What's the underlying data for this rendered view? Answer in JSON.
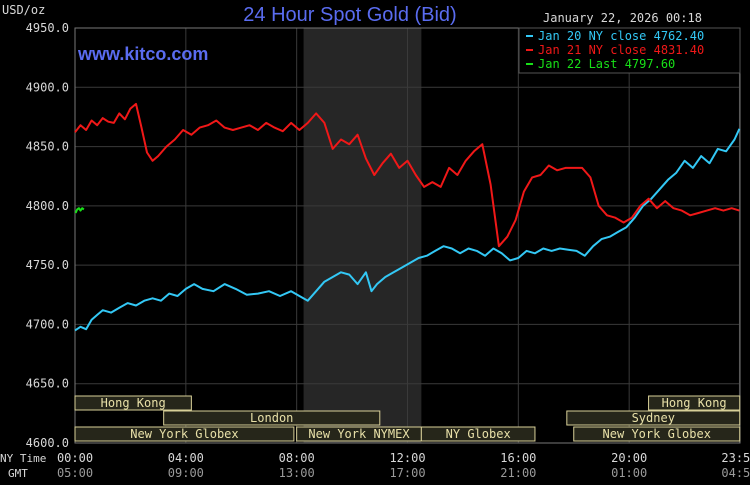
{
  "title": "24 Hour Spot Gold (Bid)",
  "unit_label": "USD/oz",
  "timestamp": "January 22, 2026 00:18",
  "watermark": "www.kitco.com",
  "colors": {
    "background": "#000000",
    "plot_background": "#000000",
    "grid": "#3a3a3a",
    "axis_text": "#d8d8d8",
    "title": "#5a6cf0",
    "watermark": "#5a6cf0",
    "session_band": "#262626",
    "market_box_fill": "#26261a",
    "market_box_border": "#d8d098",
    "market_text": "#e8e0a8"
  },
  "time_rows": {
    "ny_label": "NY Time",
    "gmt_label": "GMT",
    "ny_ticks": [
      "00:00",
      "04:00",
      "08:00",
      "12:00",
      "16:00",
      "20:00",
      "23:59"
    ],
    "gmt_ticks": [
      "05:00",
      "09:00",
      "13:00",
      "17:00",
      "21:00",
      "01:00",
      "04:59"
    ]
  },
  "markets": [
    {
      "label": "Hong Kong",
      "row": 0,
      "start": 0,
      "end": 4.2
    },
    {
      "label": "Hong Kong",
      "row": 0,
      "start": 20.7,
      "end": 23.99
    },
    {
      "label": "London",
      "row": 1,
      "start": 3.2,
      "end": 11.0
    },
    {
      "label": "Sydney",
      "row": 1,
      "start": 17.75,
      "end": 23.99
    },
    {
      "label": "New York Globex",
      "row": 2,
      "start": 0,
      "end": 7.9
    },
    {
      "label": "New York NYMEX",
      "row": 2,
      "start": 8.0,
      "end": 12.5
    },
    {
      "label": "NY Globex",
      "row": 2,
      "start": 12.5,
      "end": 16.6
    },
    {
      "label": "New York Globex",
      "row": 2,
      "start": 18.0,
      "end": 23.99
    }
  ],
  "chart_data": {
    "type": "line",
    "title": "24 Hour Spot Gold (Bid)",
    "ylabel": "USD/oz",
    "xlabel": "NY Time",
    "xlim": [
      0,
      24
    ],
    "ylim": [
      4600,
      4950
    ],
    "yticks": [
      "4600.0",
      "4650.0",
      "4700.0",
      "4750.0",
      "4800.0",
      "4850.0",
      "4900.0",
      "4950.0"
    ],
    "ytick_values": [
      4600,
      4650,
      4700,
      4750,
      4800,
      4850,
      4900,
      4950
    ],
    "xtick_values": [
      0,
      4,
      8,
      12,
      16,
      20,
      23.98
    ],
    "grid": true,
    "shaded_interval": [
      8.25,
      12.5
    ],
    "legend_position": "top-right",
    "series": [
      {
        "name": "Jan 20 NY close 4762.40",
        "color": "#33c8f5",
        "x": [
          0,
          0.2,
          0.4,
          0.6,
          0.8,
          1.0,
          1.3,
          1.6,
          1.9,
          2.2,
          2.5,
          2.8,
          3.1,
          3.4,
          3.7,
          4.0,
          4.3,
          4.6,
          5.0,
          5.4,
          5.8,
          6.2,
          6.6,
          7.0,
          7.4,
          7.8,
          8.1,
          8.4,
          8.7,
          9.0,
          9.3,
          9.6,
          9.9,
          10.2,
          10.5,
          10.7,
          10.9,
          11.2,
          11.5,
          11.8,
          12.1,
          12.4,
          12.7,
          13.0,
          13.3,
          13.6,
          13.9,
          14.2,
          14.5,
          14.8,
          15.1,
          15.4,
          15.7,
          16.0,
          16.3,
          16.6,
          16.9,
          17.2,
          17.5,
          17.8,
          18.1,
          18.4,
          18.7,
          19.0,
          19.3,
          19.6,
          19.9,
          20.2,
          20.5,
          20.8,
          21.1,
          21.4,
          21.7,
          22.0,
          22.3,
          22.6,
          22.9,
          23.2,
          23.5,
          23.8,
          23.98
        ],
        "values": [
          4695,
          4698,
          4696,
          4704,
          4708,
          4712,
          4710,
          4714,
          4718,
          4716,
          4720,
          4722,
          4720,
          4726,
          4724,
          4730,
          4734,
          4730,
          4728,
          4734,
          4730,
          4725,
          4726,
          4728,
          4724,
          4728,
          4724,
          4720,
          4728,
          4736,
          4740,
          4744,
          4742,
          4734,
          4744,
          4728,
          4734,
          4740,
          4744,
          4748,
          4752,
          4756,
          4758,
          4762,
          4766,
          4764,
          4760,
          4764,
          4762,
          4758,
          4764,
          4760,
          4754,
          4756,
          4762,
          4760,
          4764,
          4762,
          4764,
          4763,
          4762,
          4758,
          4766,
          4772,
          4774,
          4778,
          4782,
          4790,
          4800,
          4806,
          4814,
          4822,
          4828,
          4838,
          4832,
          4842,
          4836,
          4848,
          4846,
          4856,
          4865
        ]
      },
      {
        "name": "Jan 21 NY close 4831.40",
        "color": "#f01818",
        "x": [
          0,
          0.2,
          0.4,
          0.6,
          0.8,
          1.0,
          1.2,
          1.4,
          1.6,
          1.8,
          2.0,
          2.2,
          2.4,
          2.6,
          2.8,
          3.0,
          3.3,
          3.6,
          3.9,
          4.2,
          4.5,
          4.8,
          5.1,
          5.4,
          5.7,
          6.0,
          6.3,
          6.6,
          6.9,
          7.2,
          7.5,
          7.8,
          8.1,
          8.4,
          8.7,
          9.0,
          9.3,
          9.6,
          9.9,
          10.2,
          10.5,
          10.8,
          11.1,
          11.4,
          11.7,
          12.0,
          12.3,
          12.6,
          12.9,
          13.2,
          13.5,
          13.8,
          14.1,
          14.4,
          14.7,
          15.0,
          15.3,
          15.6,
          15.9,
          16.2,
          16.5,
          16.8,
          17.1,
          17.4,
          17.7,
          18.0,
          18.3,
          18.6,
          18.9,
          19.2,
          19.5,
          19.8,
          20.1,
          20.4,
          20.7,
          21.0,
          21.3,
          21.6,
          21.9,
          22.2,
          22.5,
          22.8,
          23.1,
          23.4,
          23.7,
          23.98
        ],
        "values": [
          4862,
          4868,
          4864,
          4872,
          4868,
          4874,
          4871,
          4870,
          4878,
          4873,
          4882,
          4886,
          4866,
          4845,
          4838,
          4842,
          4850,
          4856,
          4864,
          4860,
          4866,
          4868,
          4872,
          4866,
          4864,
          4866,
          4868,
          4864,
          4870,
          4866,
          4863,
          4870,
          4864,
          4870,
          4878,
          4870,
          4848,
          4856,
          4852,
          4860,
          4840,
          4826,
          4836,
          4844,
          4832,
          4838,
          4826,
          4816,
          4820,
          4816,
          4832,
          4826,
          4838,
          4846,
          4852,
          4818,
          4766,
          4774,
          4788,
          4812,
          4824,
          4826,
          4834,
          4830,
          4832,
          4832,
          4832,
          4824,
          4800,
          4792,
          4790,
          4786,
          4790,
          4800,
          4806,
          4798,
          4804,
          4798,
          4796,
          4792,
          4794,
          4796,
          4798,
          4796,
          4798,
          4796
        ]
      },
      {
        "name": "Jan 22 Last 4797.60",
        "color": "#18e018",
        "x": [
          0.02,
          0.08,
          0.14,
          0.2,
          0.26,
          0.32
        ],
        "values": [
          4794,
          4797,
          4798,
          4796,
          4798,
          4797
        ]
      }
    ]
  }
}
